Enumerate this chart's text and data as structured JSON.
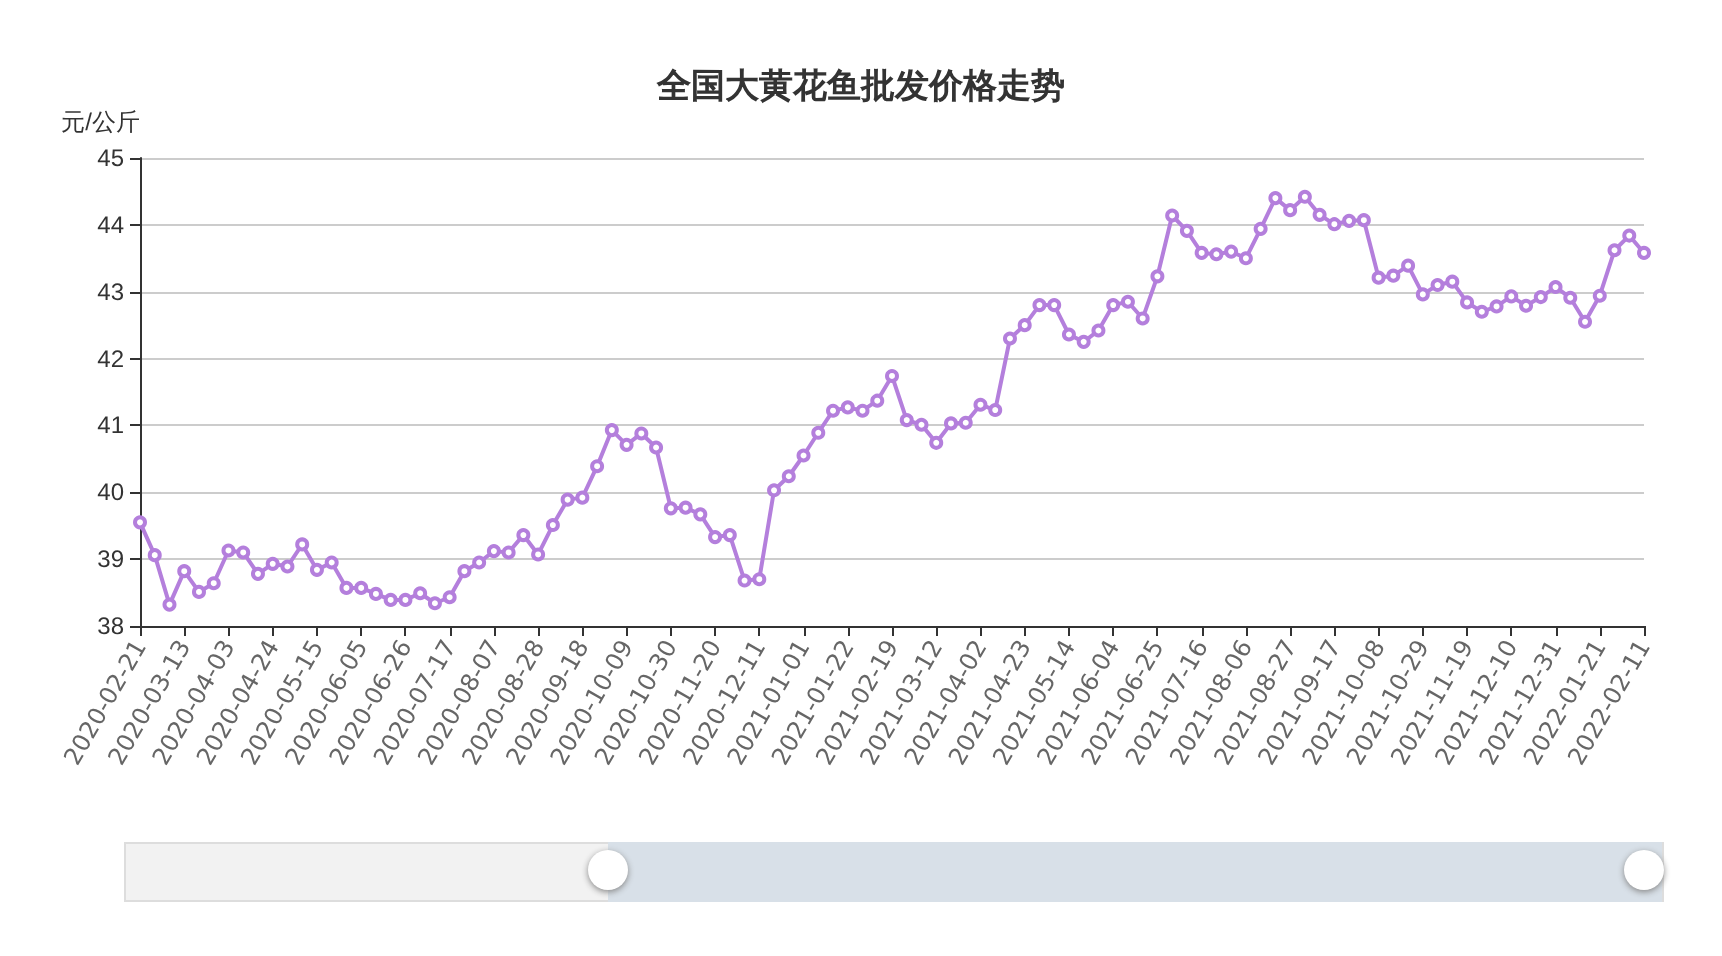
{
  "chart_data": {
    "type": "line",
    "title": "全国大黄花鱼批发价格走势",
    "ylabel": "元/公斤",
    "categories": [
      "2020-02-21",
      null,
      null,
      "2020-03-13",
      null,
      null,
      "2020-04-03",
      null,
      null,
      "2020-04-24",
      null,
      null,
      "2020-05-15",
      null,
      null,
      "2020-06-05",
      null,
      null,
      "2020-06-26",
      null,
      null,
      "2020-07-17",
      null,
      null,
      "2020-08-07",
      null,
      null,
      "2020-08-28",
      null,
      null,
      "2020-09-18",
      null,
      null,
      "2020-10-09",
      null,
      null,
      "2020-10-30",
      null,
      null,
      "2020-11-20",
      null,
      null,
      "2020-12-11",
      null,
      null,
      "2021-01-01",
      null,
      null,
      "2021-01-22",
      null,
      null,
      "2021-02-19",
      null,
      null,
      "2021-03-12",
      null,
      null,
      "2021-04-02",
      null,
      null,
      "2021-04-23",
      null,
      null,
      "2021-05-14",
      null,
      null,
      "2021-06-04",
      null,
      null,
      "2021-06-25",
      null,
      null,
      "2021-07-16",
      null,
      null,
      "2021-08-06",
      null,
      null,
      "2021-08-27",
      null,
      null,
      "2021-09-17",
      null,
      null,
      "2021-10-08",
      null,
      null,
      "2021-10-29",
      null,
      null,
      "2021-11-19",
      null,
      null,
      "2021-12-10",
      null,
      null,
      "2021-12-31",
      null,
      null,
      "2022-01-21",
      null,
      null,
      "2022-02-11"
    ],
    "series": [
      {
        "color": "#b47fdc",
        "values": [
          39.55,
          39.06,
          38.32,
          38.82,
          38.51,
          38.64,
          39.13,
          39.1,
          38.78,
          38.93,
          38.89,
          39.22,
          38.84,
          38.95,
          38.57,
          38.57,
          38.48,
          38.39,
          38.39,
          38.49,
          38.34,
          38.43,
          38.82,
          38.95,
          39.12,
          39.1,
          39.36,
          39.07,
          39.51,
          39.89,
          39.92,
          40.39,
          40.93,
          40.71,
          40.88,
          40.67,
          39.76,
          39.77,
          39.67,
          39.33,
          39.36,
          38.68,
          38.7,
          40.03,
          40.24,
          40.55,
          40.89,
          41.22,
          41.27,
          41.22,
          41.37,
          41.74,
          41.08,
          41.01,
          40.74,
          41.03,
          41.04,
          41.31,
          41.23,
          42.3,
          42.5,
          42.8,
          42.8,
          42.36,
          42.25,
          42.42,
          42.8,
          42.85,
          42.6,
          43.23,
          44.14,
          43.91,
          43.58,
          43.56,
          43.6,
          43.5,
          43.94,
          44.4,
          44.22,
          44.42,
          44.15,
          44.01,
          44.06,
          44.07,
          43.21,
          43.24,
          43.39,
          42.96,
          43.1,
          43.15,
          42.84,
          42.7,
          42.78,
          42.93,
          42.79,
          42.92,
          43.07,
          42.91,
          42.55,
          42.94,
          43.62,
          43.84,
          43.58
        ]
      }
    ],
    "ylim": [
      38,
      45
    ],
    "yticks": [
      38,
      39,
      40,
      41,
      42,
      43,
      44,
      45
    ],
    "grid": "y",
    "marker": "circle",
    "line_style": "solid"
  }
}
